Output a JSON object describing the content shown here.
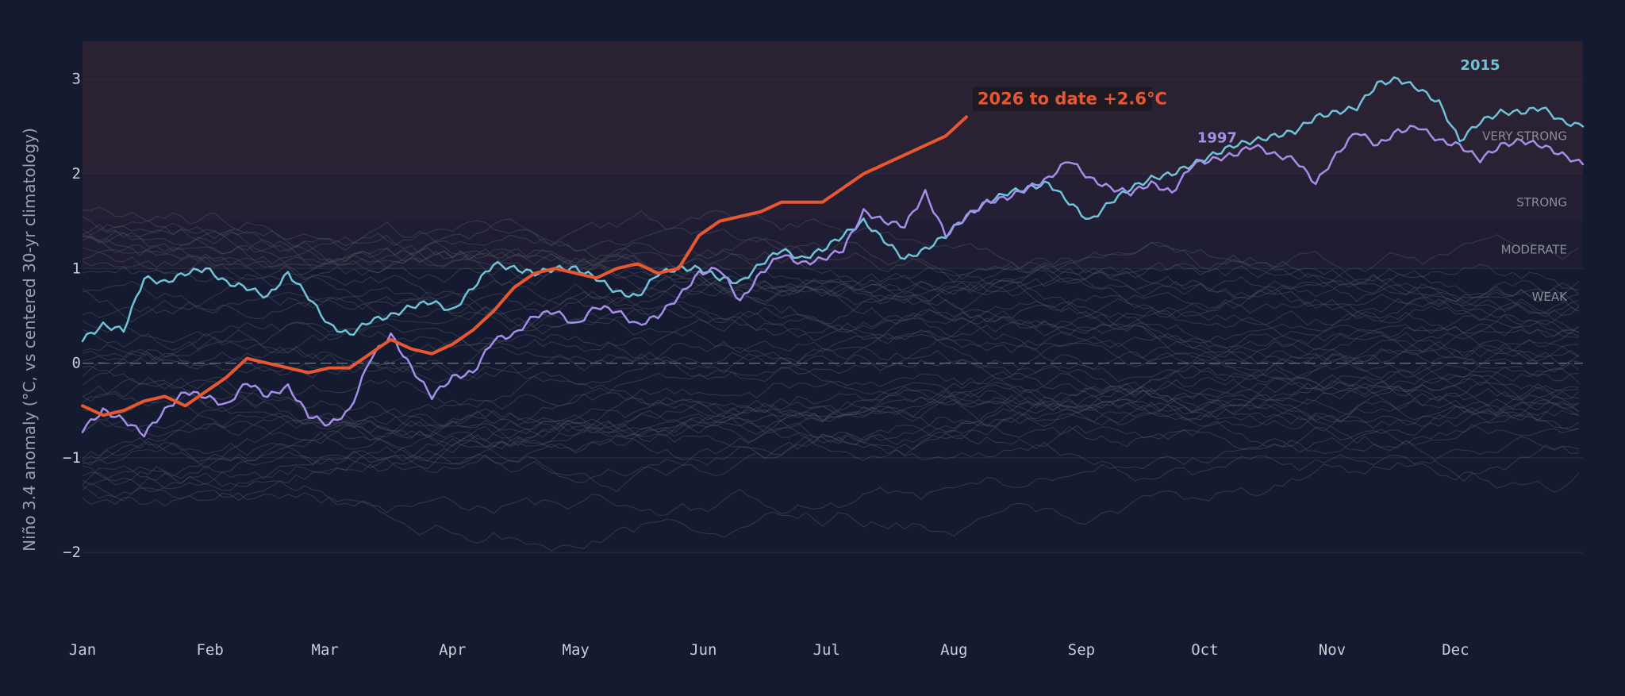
{
  "chart_data": {
    "type": "line",
    "title": "",
    "xlabel": "",
    "ylabel": "Niño 3.4 anomaly (°C, vs centered 30-yr climatology)",
    "x_axis": {
      "range": [
        0,
        365
      ],
      "ticks": [
        {
          "label": "Jan",
          "day": 0
        },
        {
          "label": "Feb",
          "day": 31
        },
        {
          "label": "Mar",
          "day": 59
        },
        {
          "label": "Apr",
          "day": 90
        },
        {
          "label": "May",
          "day": 120
        },
        {
          "label": "Jun",
          "day": 151
        },
        {
          "label": "Jul",
          "day": 181
        },
        {
          "label": "Aug",
          "day": 212
        },
        {
          "label": "Sep",
          "day": 243
        },
        {
          "label": "Oct",
          "day": 273
        },
        {
          "label": "Nov",
          "day": 304
        },
        {
          "label": "Dec",
          "day": 334
        }
      ]
    },
    "y_axis": {
      "range": [
        -2.3,
        3.4
      ],
      "ticks": [
        {
          "label": "−2",
          "value": -2
        },
        {
          "label": "−1",
          "value": -1
        },
        {
          "label": "0",
          "value": 0
        },
        {
          "label": "1",
          "value": 1
        },
        {
          "label": "2",
          "value": 2
        },
        {
          "label": "3",
          "value": 3
        }
      ]
    },
    "grid": true,
    "zero_line": true,
    "intensity_bands": [
      {
        "label": "WEAK",
        "from": 0.5,
        "to": 1.0,
        "color": "#151a30"
      },
      {
        "label": "MODERATE",
        "from": 1.0,
        "to": 1.5,
        "color": "#1e1d34"
      },
      {
        "label": "STRONG",
        "from": 1.5,
        "to": 2.0,
        "color": "#241f34"
      },
      {
        "label": "VERY STRONG",
        "from": 2.0,
        "to": 3.4,
        "color": "#2a2133"
      }
    ],
    "series": [
      {
        "name": "2026 to date",
        "annotation": "2026 to date  +2.6°C",
        "color": "#e8572f",
        "width": 4,
        "x": [
          0,
          5,
          10,
          15,
          20,
          25,
          30,
          35,
          40,
          45,
          50,
          55,
          60,
          65,
          70,
          75,
          80,
          85,
          90,
          95,
          100,
          105,
          110,
          115,
          120,
          125,
          130,
          135,
          140,
          145,
          150,
          155,
          160,
          165,
          170,
          175,
          180,
          185,
          190,
          195,
          200,
          205,
          210,
          215
        ],
        "y": [
          -0.45,
          -0.55,
          -0.5,
          -0.4,
          -0.35,
          -0.45,
          -0.3,
          -0.15,
          0.05,
          0.0,
          -0.05,
          -0.1,
          -0.05,
          -0.05,
          0.1,
          0.25,
          0.15,
          0.1,
          0.2,
          0.35,
          0.55,
          0.8,
          0.95,
          1.0,
          0.95,
          0.9,
          1.0,
          1.05,
          0.95,
          1.0,
          1.35,
          1.5,
          1.55,
          1.6,
          1.7,
          1.7,
          1.7,
          1.85,
          2.0,
          2.1,
          2.2,
          2.3,
          2.4,
          2.6
        ]
      },
      {
        "name": "2015",
        "color": "#6ec3d8",
        "width": 2.5,
        "x": [
          0,
          5,
          10,
          15,
          20,
          25,
          30,
          35,
          40,
          45,
          50,
          55,
          60,
          65,
          70,
          75,
          80,
          85,
          90,
          95,
          100,
          105,
          110,
          115,
          120,
          125,
          130,
          135,
          140,
          145,
          150,
          155,
          160,
          165,
          170,
          175,
          180,
          185,
          190,
          195,
          200,
          205,
          210,
          215,
          220,
          225,
          230,
          235,
          240,
          245,
          250,
          255,
          260,
          265,
          270,
          275,
          280,
          285,
          290,
          295,
          300,
          305,
          310,
          315,
          320,
          325,
          330,
          335,
          340,
          345,
          350,
          355,
          360,
          365
        ],
        "y": [
          0.25,
          0.4,
          0.35,
          0.9,
          0.85,
          0.95,
          1.0,
          0.85,
          0.8,
          0.7,
          0.95,
          0.7,
          0.4,
          0.3,
          0.45,
          0.5,
          0.6,
          0.65,
          0.55,
          0.8,
          1.05,
          1.0,
          0.95,
          1.0,
          1.0,
          0.9,
          0.75,
          0.7,
          0.95,
          1.0,
          1.0,
          0.9,
          0.85,
          1.05,
          1.2,
          1.1,
          1.2,
          1.35,
          1.5,
          1.3,
          1.1,
          1.2,
          1.35,
          1.55,
          1.7,
          1.8,
          1.85,
          1.9,
          1.7,
          1.5,
          1.7,
          1.85,
          1.95,
          2.0,
          2.1,
          2.2,
          2.3,
          2.35,
          2.4,
          2.45,
          2.6,
          2.65,
          2.7,
          2.95,
          3.0,
          2.9,
          2.75,
          2.35,
          2.55,
          2.65,
          2.65,
          2.7,
          2.55,
          2.5
        ]
      },
      {
        "name": "1997",
        "color": "#a48ee8",
        "width": 2.5,
        "x": [
          0,
          5,
          10,
          15,
          20,
          25,
          30,
          35,
          40,
          45,
          50,
          55,
          60,
          65,
          70,
          75,
          80,
          85,
          90,
          95,
          100,
          105,
          110,
          115,
          120,
          125,
          130,
          135,
          140,
          145,
          150,
          155,
          160,
          165,
          170,
          175,
          180,
          185,
          190,
          195,
          200,
          205,
          210,
          215,
          220,
          225,
          230,
          235,
          240,
          245,
          250,
          255,
          260,
          265,
          270,
          275,
          280,
          285,
          290,
          295,
          300,
          305,
          310,
          315,
          320,
          325,
          330,
          335,
          340,
          345,
          350,
          355,
          360,
          365
        ],
        "y": [
          -0.7,
          -0.5,
          -0.6,
          -0.75,
          -0.5,
          -0.3,
          -0.35,
          -0.45,
          -0.2,
          -0.35,
          -0.25,
          -0.55,
          -0.65,
          -0.5,
          0.05,
          0.3,
          -0.05,
          -0.35,
          -0.15,
          -0.1,
          0.25,
          0.3,
          0.5,
          0.55,
          0.4,
          0.6,
          0.55,
          0.4,
          0.5,
          0.7,
          0.95,
          1.0,
          0.65,
          0.95,
          1.15,
          1.05,
          1.1,
          1.2,
          1.6,
          1.5,
          1.45,
          1.8,
          1.35,
          1.55,
          1.7,
          1.75,
          1.85,
          1.95,
          2.15,
          1.95,
          1.85,
          1.8,
          1.9,
          1.8,
          2.1,
          2.15,
          2.2,
          2.3,
          2.2,
          2.15,
          1.9,
          2.2,
          2.45,
          2.3,
          2.45,
          2.5,
          2.35,
          2.3,
          2.15,
          2.3,
          2.35,
          2.3,
          2.2,
          2.1
        ]
      }
    ],
    "annotations": [
      "2026 to date  +2.6°C",
      "2015",
      "1997"
    ],
    "background_years_note_count": 40,
    "colors": {
      "background": "#141a2f",
      "grid": "#2a2f42",
      "zero_line": "#8a8e99",
      "background_lines": "#4a4e5a"
    }
  }
}
